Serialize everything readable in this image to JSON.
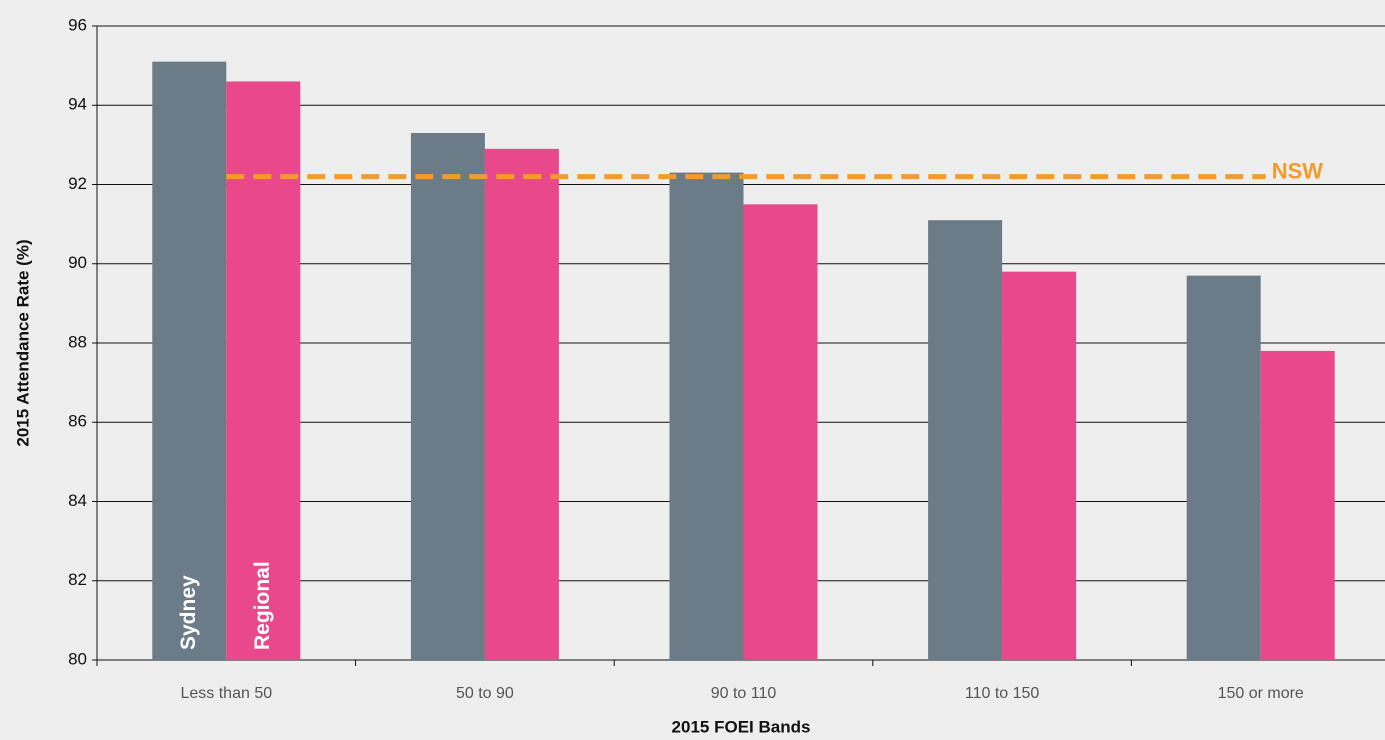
{
  "chart_data": {
    "type": "bar",
    "x_label": "2015 FOEI Bands",
    "y_label": "2015 Attendance Rate (%)",
    "categories": [
      "Less than 50",
      "50 to 90",
      "90 to 110",
      "110 to 150",
      "150 or more"
    ],
    "series": [
      {
        "name": "Sydney",
        "color": "#6b7b88",
        "values": [
          95.1,
          93.3,
          92.3,
          91.1,
          89.7
        ]
      },
      {
        "name": "Regional",
        "color": "#e9488a",
        "values": [
          94.6,
          92.9,
          91.5,
          89.8,
          87.8
        ]
      }
    ],
    "reference_line": {
      "name": "NSW",
      "value": 92.2,
      "color": "#f39a2f"
    },
    "ylim": [
      80,
      96
    ],
    "yticks": [
      80,
      82,
      84,
      86,
      88,
      90,
      92,
      94,
      96
    ],
    "grid": true
  }
}
